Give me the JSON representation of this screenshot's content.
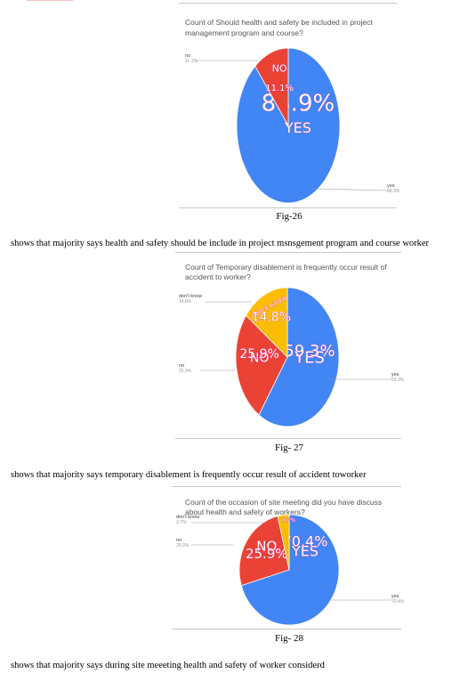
{
  "figures": [
    {
      "caption": "Fig-26",
      "description": "shows that majority says health and safety should be include in project msnsgement program and course worker",
      "chart_data": {
        "type": "pie",
        "title_lines": [
          "Count of Should health and safety be included in project",
          "management program and course?"
        ],
        "slices": [
          {
            "label": "yes",
            "value": 88.9,
            "pct_label": "88.9%",
            "inner_label": "YES",
            "ext_pct": "88.9%",
            "color": "#4285f4"
          },
          {
            "label": "no",
            "value": 11.1,
            "pct_label": "11.1%",
            "inner_label": "NO",
            "ext_pct": "11.1%",
            "color": "#ea4335"
          }
        ]
      }
    },
    {
      "caption": "Fig- 27",
      "description": "shows that majority says  temporary disablement is frequently occur result of accident toworker",
      "chart_data": {
        "type": "pie",
        "title_lines": [
          "Count of Temporary disablement is frequently occur result of",
          "accident to worker?"
        ],
        "slices": [
          {
            "label": "yes",
            "value": 59.3,
            "pct_label": "59.3%",
            "inner_label": "YES",
            "ext_pct": "59.3%",
            "color": "#4285f4"
          },
          {
            "label": "no",
            "value": 25.9,
            "pct_label": "25.9%",
            "inner_label": "NO",
            "ext_pct": "25.9%",
            "color": "#ea4335"
          },
          {
            "label": "don't know",
            "value": 14.8,
            "pct_label": "14.8%",
            "inner_label": "don't know",
            "ext_pct": "14.8%",
            "color": "#fbbc04"
          }
        ]
      }
    },
    {
      "caption": "Fig- 28",
      "description": "shows that majority says during site meeeting health and safety of worker considerd",
      "chart_data": {
        "type": "pie",
        "title_lines": [
          "Count of the occasion of site meeting did you have discuss",
          "about health and safety of workers?"
        ],
        "slices": [
          {
            "label": "yes",
            "value": 70.4,
            "pct_label": "70.4%",
            "inner_label": "YES",
            "ext_pct": "70.4%",
            "color": "#4285f4"
          },
          {
            "label": "no",
            "value": 25.9,
            "pct_label": "25.9%",
            "inner_label": "NO",
            "ext_pct": "25.9%",
            "color": "#ea4335"
          },
          {
            "label": "don't know",
            "value": 3.7,
            "pct_label": "3.7%",
            "inner_label": "",
            "ext_pct": "3.7%",
            "color": "#fbbc04"
          }
        ]
      }
    }
  ]
}
